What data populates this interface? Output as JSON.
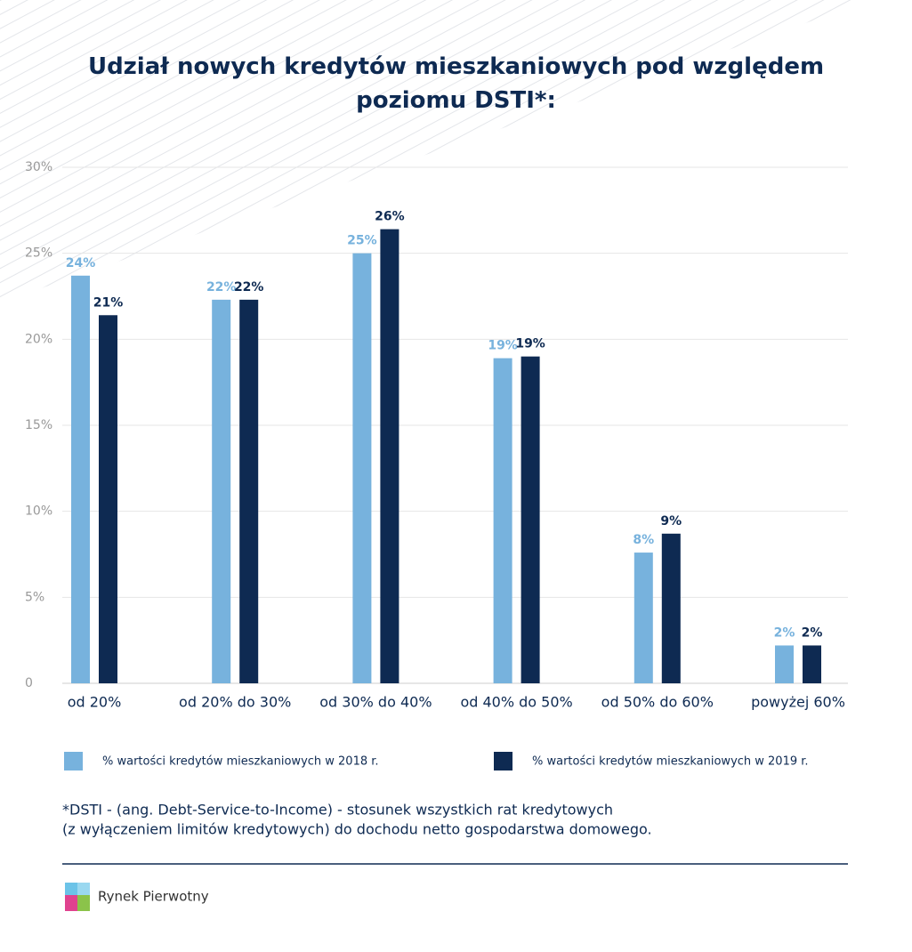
{
  "chart_data": {
    "type": "bar",
    "title": "Udział nowych kredytów mieszkaniowych pod względem poziomu DSTI*:",
    "categories": [
      "od 20%",
      "od 20% do 30%",
      "od 30% do 40%",
      "od 40% do 50%",
      "od 50% do 60%",
      "powyżej 60%"
    ],
    "series": [
      {
        "name": "% wartości kredytów mieszkaniowych w 2018 r.",
        "color": "#77b2dd",
        "values": [
          23.7,
          22.3,
          25.0,
          18.9,
          7.6,
          2.2
        ],
        "value_labels": [
          "24%",
          "22%",
          "25%",
          "19%",
          "8%",
          "2%"
        ]
      },
      {
        "name": "% wartości kredytów mieszkaniowych w 2019 r.",
        "color": "#0e2a52",
        "values": [
          21.4,
          22.3,
          26.4,
          19.0,
          8.7,
          2.2
        ],
        "value_labels": [
          "21%",
          "22%",
          "26%",
          "19%",
          "9%",
          "2%"
        ]
      }
    ],
    "ylim": [
      0,
      30
    ],
    "yticks": [
      0,
      {
        "value": 5,
        "label": "5%"
      },
      {
        "value": 10,
        "label": "10%"
      },
      {
        "value": 15,
        "label": "15%"
      },
      {
        "value": 20,
        "label": "20%"
      },
      {
        "value": 25,
        "label": "25%"
      },
      {
        "value": 30,
        "label": "30%"
      }
    ],
    "grid": true,
    "legend": "bottom",
    "footnote": [
      "*DSTI - (ang. Debt-Service-to-Income) - stosunek wszystkich rat kredytowych",
      " (z wyłączeniem limitów kredytowych) do dochodu netto gospodarstwa domowego."
    ]
  },
  "brand": "Rynek Pierwotny"
}
